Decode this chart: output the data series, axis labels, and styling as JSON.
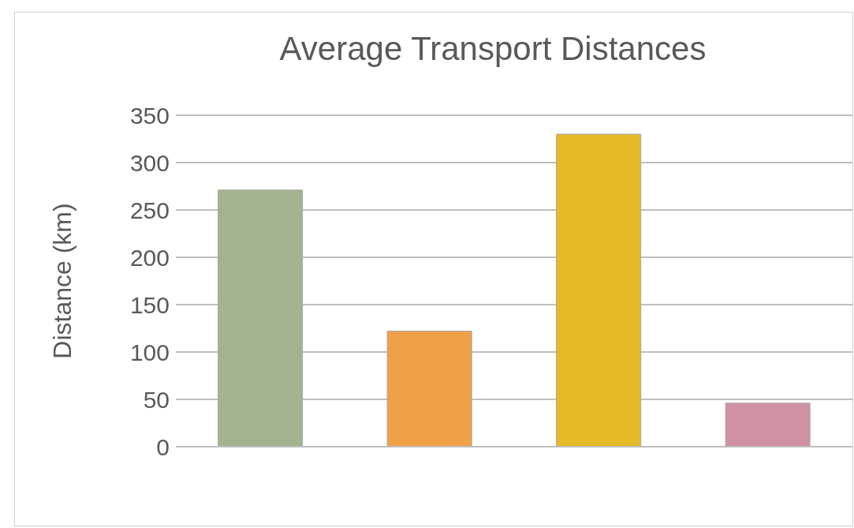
{
  "chart_data": {
    "type": "bar",
    "title": "Average Transport Distances",
    "ylabel": "Distance (km)",
    "categories": [
      null,
      null,
      null,
      null
    ],
    "values": [
      271,
      122,
      330,
      46
    ],
    "colors": [
      "#a3b38f",
      "#f0a046",
      "#e5b928",
      "#d091a2"
    ],
    "ylim": [
      0,
      350
    ],
    "yticks": [
      0,
      50,
      100,
      150,
      200,
      250,
      300,
      350
    ],
    "grid": "y"
  }
}
